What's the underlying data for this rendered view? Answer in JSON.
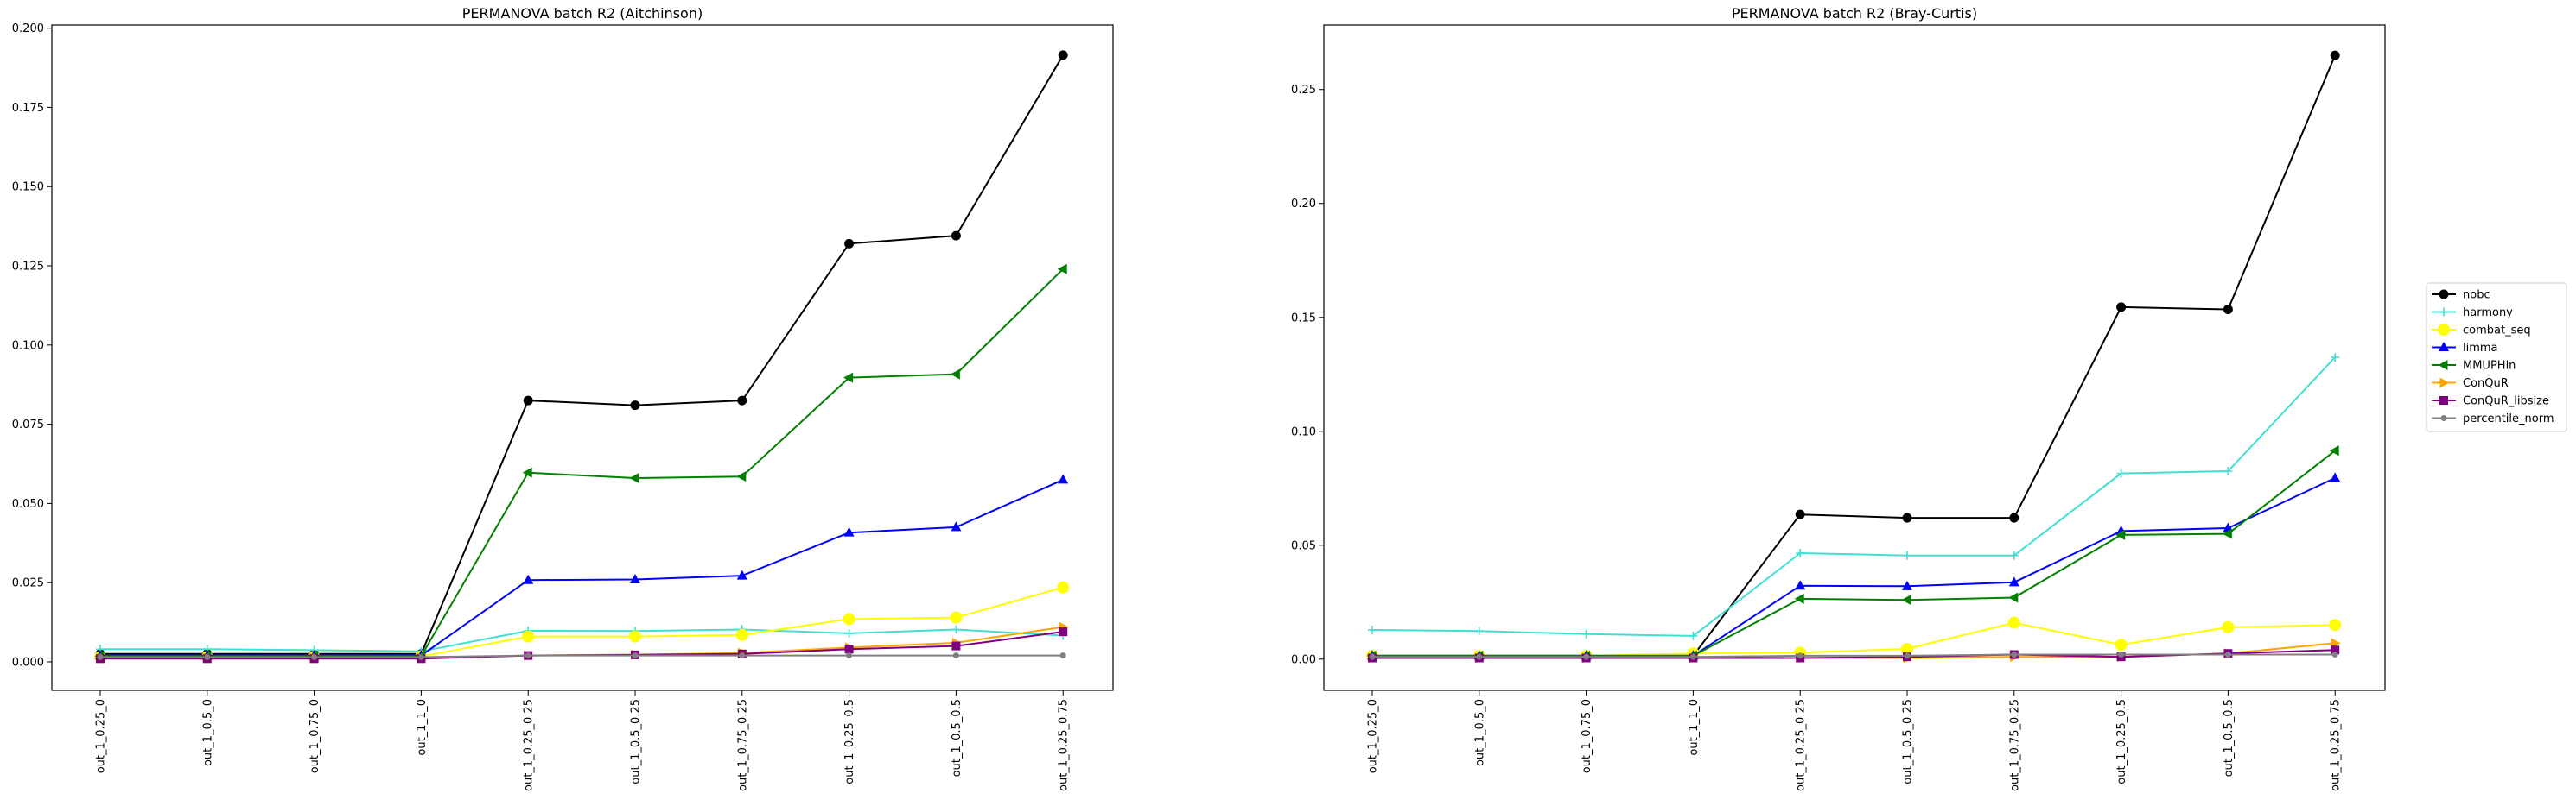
{
  "chart_data": [
    {
      "type": "line",
      "title": "PERMANOVA batch R2 (Aitchinson)",
      "xlabel": "",
      "ylabel": "",
      "categories": [
        "out_1_0.25_0",
        "out_1_0.5_0",
        "out_1_0.75_0",
        "out_1_1_0",
        "out_1_0.25_0.25",
        "out_1_0.5_0.25",
        "out_1_0.75_0.25",
        "out_1_0.25_0.5",
        "out_1_0.5_0.5",
        "out_1_0.25_0.75"
      ],
      "ylim": [
        -0.009,
        0.201
      ],
      "yticks": [
        "0.000",
        "0.025",
        "0.050",
        "0.075",
        "0.100",
        "0.125",
        "0.150",
        "0.175",
        "0.200"
      ],
      "ytick_values": [
        0,
        0.025,
        0.05,
        0.075,
        0.1,
        0.125,
        0.15,
        0.175,
        0.2
      ],
      "grid": false,
      "series": [
        {
          "name": "nobc",
          "color": "#000000",
          "marker": "circle",
          "values": [
            0.0025,
            0.0025,
            0.0025,
            0.0025,
            0.0825,
            0.081,
            0.0825,
            0.132,
            0.1345,
            0.1915
          ]
        },
        {
          "name": "harmony",
          "color": "#40e0d0",
          "marker": "plus",
          "values": [
            0.004,
            0.004,
            0.0037,
            0.0033,
            0.0098,
            0.0097,
            0.0102,
            0.009,
            0.0102,
            0.0083
          ]
        },
        {
          "name": "combat_seq",
          "color": "#ffff00",
          "marker": "bigcircle",
          "values": [
            0.0015,
            0.0015,
            0.0015,
            0.0017,
            0.008,
            0.008,
            0.0085,
            0.0135,
            0.014,
            0.0235
          ]
        },
        {
          "name": "limma",
          "color": "#0000ff",
          "marker": "triangle-up",
          "values": [
            0.002,
            0.002,
            0.002,
            0.002,
            0.0258,
            0.026,
            0.0272,
            0.0408,
            0.0425,
            0.0575
          ]
        },
        {
          "name": "MMUPHin",
          "color": "#008000",
          "marker": "triangle-left",
          "values": [
            0.0018,
            0.0018,
            0.0018,
            0.0018,
            0.0597,
            0.058,
            0.0585,
            0.0897,
            0.0908,
            0.124
          ]
        },
        {
          "name": "ConQuR",
          "color": "#ffa500",
          "marker": "triangle-right",
          "values": [
            0.0012,
            0.0012,
            0.0012,
            0.0012,
            0.002,
            0.0023,
            0.0028,
            0.0045,
            0.006,
            0.011
          ]
        },
        {
          "name": "ConQuR_libsize",
          "color": "#800080",
          "marker": "square",
          "values": [
            0.001,
            0.001,
            0.001,
            0.001,
            0.002,
            0.0022,
            0.0025,
            0.004,
            0.005,
            0.0095
          ]
        },
        {
          "name": "percentile_norm",
          "color": "#808080",
          "marker": "dot",
          "values": [
            0.0015,
            0.0015,
            0.0015,
            0.0015,
            0.002,
            0.002,
            0.002,
            0.002,
            0.002,
            0.002
          ]
        }
      ]
    },
    {
      "type": "line",
      "title": "PERMANOVA batch R2 (Bray-Curtis)",
      "xlabel": "",
      "ylabel": "",
      "categories": [
        "out_1_0.25_0",
        "out_1_0.5_0",
        "out_1_0.75_0",
        "out_1_1_0",
        "out_1_0.25_0.25",
        "out_1_0.5_0.25",
        "out_1_0.75_0.25",
        "out_1_0.25_0.5",
        "out_1_0.5_0.5",
        "out_1_0.25_0.75"
      ],
      "ylim": [
        -0.0137,
        0.2783
      ],
      "yticks": [
        "0.00",
        "0.05",
        "0.10",
        "0.15",
        "0.20",
        "0.25"
      ],
      "ytick_values": [
        0,
        0.05,
        0.1,
        0.15,
        0.2,
        0.25
      ],
      "grid": false,
      "series": [
        {
          "name": "nobc",
          "color": "#000000",
          "marker": "circle",
          "values": [
            0.0015,
            0.0015,
            0.0015,
            0.0015,
            0.0635,
            0.062,
            0.062,
            0.1545,
            0.1535,
            0.265
          ]
        },
        {
          "name": "harmony",
          "color": "#40e0d0",
          "marker": "plus",
          "values": [
            0.0128,
            0.0123,
            0.011,
            0.0102,
            0.0465,
            0.0455,
            0.0455,
            0.0815,
            0.0825,
            0.1325
          ]
        },
        {
          "name": "combat_seq",
          "color": "#ffff00",
          "marker": "bigcircle",
          "values": [
            0.0015,
            0.0015,
            0.0015,
            0.0025,
            0.0028,
            0.0045,
            0.016,
            0.0063,
            0.014,
            0.015
          ]
        },
        {
          "name": "limma",
          "color": "#0000ff",
          "marker": "triangle-up",
          "values": [
            0.0015,
            0.0015,
            0.0015,
            0.0015,
            0.0322,
            0.032,
            0.0337,
            0.0562,
            0.0575,
            0.0795
          ]
        },
        {
          "name": "MMUPHin",
          "color": "#008000",
          "marker": "triangle-left",
          "values": [
            0.0015,
            0.0015,
            0.0015,
            0.0015,
            0.0265,
            0.026,
            0.027,
            0.0545,
            0.055,
            0.0915
          ]
        },
        {
          "name": "ConQuR",
          "color": "#ffa500",
          "marker": "triangle-right",
          "values": [
            0.0005,
            0.0005,
            0.0005,
            0.0005,
            0.0005,
            0.0005,
            0.001,
            0.001,
            0.0025,
            0.007
          ]
        },
        {
          "name": "ConQuR_libsize",
          "color": "#800080",
          "marker": "square",
          "values": [
            0.0005,
            0.0005,
            0.0005,
            0.0005,
            0.0005,
            0.001,
            0.002,
            0.001,
            0.0025,
            0.004
          ]
        },
        {
          "name": "percentile_norm",
          "color": "#808080",
          "marker": "dot",
          "values": [
            0.001,
            0.001,
            0.001,
            0.001,
            0.0015,
            0.0015,
            0.002,
            0.002,
            0.002,
            0.002
          ]
        }
      ]
    }
  ],
  "legend": {
    "placement": "right",
    "items": [
      {
        "label": "nobc",
        "color": "#000000",
        "marker": "circle"
      },
      {
        "label": "harmony",
        "color": "#40e0d0",
        "marker": "plus"
      },
      {
        "label": "combat_seq",
        "color": "#ffff00",
        "marker": "bigcircle"
      },
      {
        "label": "limma",
        "color": "#0000ff",
        "marker": "triangle-up"
      },
      {
        "label": "MMUPHin",
        "color": "#008000",
        "marker": "triangle-left"
      },
      {
        "label": "ConQuR",
        "color": "#ffa500",
        "marker": "triangle-right"
      },
      {
        "label": "ConQuR_libsize",
        "color": "#800080",
        "marker": "square"
      },
      {
        "label": "percentile_norm",
        "color": "#808080",
        "marker": "dot"
      }
    ]
  }
}
